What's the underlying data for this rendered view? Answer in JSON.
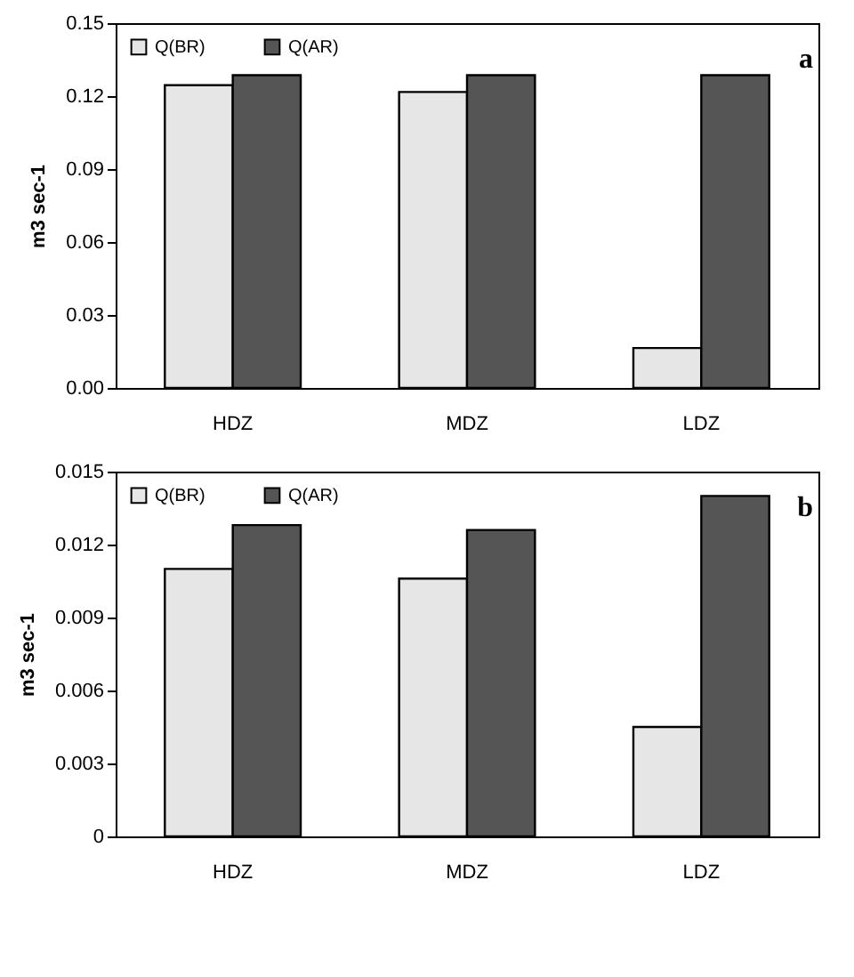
{
  "chart_data": [
    {
      "type": "bar",
      "categories": [
        "HDZ",
        "MDZ",
        "LDZ"
      ],
      "ylabel": "m3 sec-1",
      "ylim": [
        0,
        0.15
      ],
      "yticks": [
        {
          "value": 0,
          "label": "0.00"
        },
        0.03,
        0.06,
        0.09,
        0.12,
        0.15
      ],
      "series": [
        {
          "name": "Q(BR)",
          "color": "#e6e6e6",
          "values": [
            0.1245,
            0.1217,
            0.0164
          ]
        },
        {
          "name": "Q(AR)",
          "color": "#555555",
          "values": [
            0.1286,
            0.1286,
            0.1286
          ]
        }
      ],
      "legend": "top left",
      "grid": false,
      "annotations": [
        "a"
      ]
    },
    {
      "type": "bar",
      "categories": [
        "HDZ",
        "MDZ",
        "LDZ"
      ],
      "ylabel": "m3 sec-1",
      "ylim": [
        0,
        0.015
      ],
      "yticks": [
        0,
        0.003,
        0.006,
        0.009,
        0.012,
        0.015
      ],
      "series": [
        {
          "name": "Q(BR)",
          "color": "#e6e6e6",
          "values": [
            0.011,
            0.0106,
            0.0045
          ]
        },
        {
          "name": "Q(AR)",
          "color": "#555555",
          "values": [
            0.0128,
            0.0126,
            0.014
          ]
        }
      ],
      "legend": "top left",
      "grid": false,
      "annotations": [
        "b"
      ]
    }
  ]
}
